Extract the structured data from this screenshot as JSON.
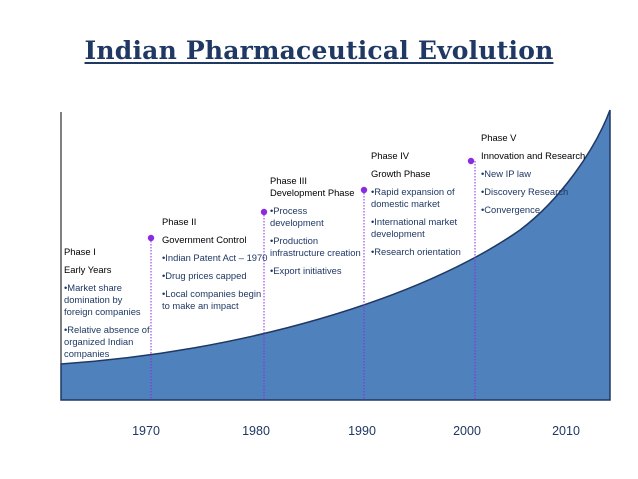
{
  "title": "Indian Pharmaceutical Evolution",
  "colors": {
    "area": "#4f81bd",
    "areaStroke": "#1f3864",
    "marker": "#8a2be2",
    "text": "#1f3864"
  },
  "years": [
    "1970",
    "1980",
    "1990",
    "2000",
    "2010"
  ],
  "phases": [
    {
      "name": "Phase I",
      "subtitle": "Early Years",
      "bullets": [
        "•Market share domination by foreign companies",
        "•Relative absence of organized Indian companies"
      ]
    },
    {
      "name": "Phase II",
      "subtitle": "Government Control",
      "bullets": [
        "•Indian Patent Act – 1970",
        "•Drug prices capped",
        "•Local companies begin to make an impact"
      ]
    },
    {
      "name": "Phase III",
      "subtitle": "Development Phase",
      "bullets": [
        "•Process development",
        "•Production infrastructure creation",
        "•Export initiatives"
      ]
    },
    {
      "name": "Phase IV",
      "subtitle": "Growth Phase",
      "bullets": [
        "•Rapid expansion of domestic market",
        "•International market development",
        "•Research orientation"
      ]
    },
    {
      "name": "Phase V",
      "subtitle": "Innovation and Research",
      "bullets": [
        "•New IP law",
        "•Discovery Research",
        "•Convergence"
      ]
    }
  ]
}
